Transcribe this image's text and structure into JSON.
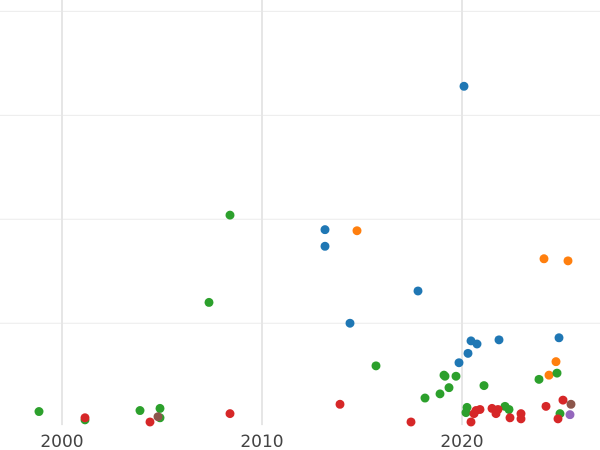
{
  "chart_data": {
    "type": "scatter",
    "title": "",
    "xlabel": "",
    "ylabel": "",
    "xlim": [
      1996.9,
      2026.9
    ],
    "ylim": [
      -0.22,
      4.11
    ],
    "x_ticks": [
      2000,
      2010,
      2020
    ],
    "x_tick_labels": [
      "2000",
      "2010",
      "2020"
    ],
    "y_gridlines": [
      1,
      2,
      3,
      4
    ],
    "grid": true,
    "series": [
      {
        "color": "#1f77b4",
        "points": [
          [
            2020.1,
            3.28
          ],
          [
            2013.15,
            1.9
          ],
          [
            2013.15,
            1.74
          ],
          [
            2017.8,
            1.31
          ],
          [
            2014.4,
            1.0
          ],
          [
            2024.85,
            0.86
          ],
          [
            2020.45,
            0.83
          ],
          [
            2021.85,
            0.84
          ],
          [
            2020.75,
            0.8
          ],
          [
            2020.3,
            0.71
          ],
          [
            2019.85,
            0.62
          ]
        ]
      },
      {
        "color": "#ff7f0e",
        "points": [
          [
            2014.75,
            1.89
          ],
          [
            2024.1,
            1.62
          ],
          [
            2025.3,
            1.6
          ],
          [
            2024.7,
            0.63
          ],
          [
            2024.35,
            0.5
          ]
        ]
      },
      {
        "color": "#2ca02c",
        "points": [
          [
            1998.85,
            0.15
          ],
          [
            2001.15,
            0.07
          ],
          [
            2003.9,
            0.16
          ],
          [
            2004.9,
            0.18
          ],
          [
            2004.9,
            0.09
          ],
          [
            2007.35,
            1.2
          ],
          [
            2008.4,
            2.04
          ],
          [
            2015.7,
            0.59
          ],
          [
            2019.1,
            0.5
          ],
          [
            2019.15,
            0.49
          ],
          [
            2019.7,
            0.49
          ],
          [
            2019.35,
            0.38
          ],
          [
            2018.9,
            0.32
          ],
          [
            2018.15,
            0.28
          ],
          [
            2021.1,
            0.4
          ],
          [
            2023.85,
            0.46
          ],
          [
            2024.75,
            0.52
          ],
          [
            2020.25,
            0.19
          ],
          [
            2020.2,
            0.14
          ],
          [
            2022.15,
            0.2
          ],
          [
            2022.35,
            0.17
          ],
          [
            2024.9,
            0.13
          ]
        ]
      },
      {
        "color": "#d62728",
        "points": [
          [
            2001.15,
            0.09
          ],
          [
            2004.4,
            0.05
          ],
          [
            2008.4,
            0.13
          ],
          [
            2013.9,
            0.22
          ],
          [
            2017.45,
            0.05
          ],
          [
            2020.45,
            0.05
          ],
          [
            2020.7,
            0.16
          ],
          [
            2020.9,
            0.17
          ],
          [
            2020.6,
            0.13
          ],
          [
            2021.5,
            0.18
          ],
          [
            2021.8,
            0.17
          ],
          [
            2021.7,
            0.13
          ],
          [
            2022.4,
            0.09
          ],
          [
            2022.95,
            0.13
          ],
          [
            2022.95,
            0.08
          ],
          [
            2024.2,
            0.2
          ],
          [
            2025.05,
            0.26
          ],
          [
            2024.8,
            0.08
          ]
        ]
      },
      {
        "color": "#8c564b",
        "points": [
          [
            2004.8,
            0.1
          ],
          [
            2025.45,
            0.22
          ]
        ]
      },
      {
        "color": "#9467bd",
        "points": [
          [
            2025.4,
            0.12
          ]
        ]
      }
    ]
  }
}
